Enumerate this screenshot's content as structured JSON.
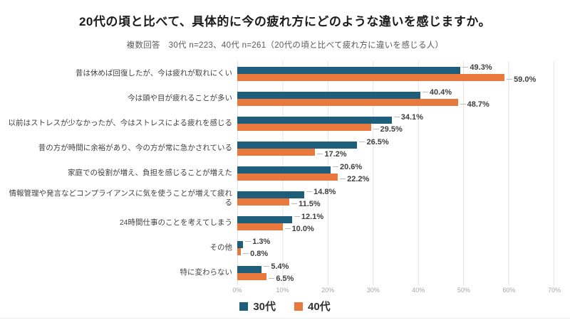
{
  "page": {
    "background": "#ffffff"
  },
  "header": {
    "title": "20代の頃と比べて、具体的に今の疲れ方にどのような違いを感じますか。",
    "subtitle": "複数回答　30代 n=223、40代 n=261（20代の頃と比べて疲れ方に違いを感じる人）"
  },
  "chart_data": {
    "type": "bar",
    "orientation": "horizontal",
    "title": "20代の頃と比べて、具体的に今の疲れ方にどのような違いを感じますか。",
    "subtitle": "複数回答　30代 n=223、40代 n=261（20代の頃と比べて疲れ方に違いを感じる人）",
    "categories": [
      "昔は休めば回復したが、今は疲れが取れにくい",
      "今は頭や目が疲れることが多い",
      "以前はストレスが少なかったが、今はストレスによる疲れを感じる",
      "昔の方が時間に余裕があり、今の方が常に急かされている",
      "家庭での役割が増え、負担を感じることが増えた",
      "情報管理や発言などコンプライアンスに気を使うことが増えて疲れる",
      "24時間仕事のことを考えてしまう",
      "その他",
      "特に変わらない"
    ],
    "series": [
      {
        "name": "30代",
        "color": "#1F5E7B",
        "values": [
          49.3,
          40.4,
          34.1,
          26.5,
          20.6,
          14.8,
          12.1,
          1.3,
          5.4
        ]
      },
      {
        "name": "40代",
        "color": "#E8783C",
        "values": [
          59.0,
          48.7,
          29.5,
          17.2,
          22.2,
          11.5,
          10.0,
          0.8,
          6.5
        ]
      }
    ],
    "value_suffix": "%",
    "data_labels": true,
    "x_ticks": [
      "0%",
      "10%",
      "20%",
      "30%",
      "40%",
      "50%",
      "60%",
      "70%"
    ],
    "xlim": [
      0,
      70
    ],
    "grid": "vertical",
    "legend_position": "bottom",
    "label_color": "#404040",
    "tick_color": "#a6a6a6",
    "gridline_color": "#e3e3e3"
  }
}
